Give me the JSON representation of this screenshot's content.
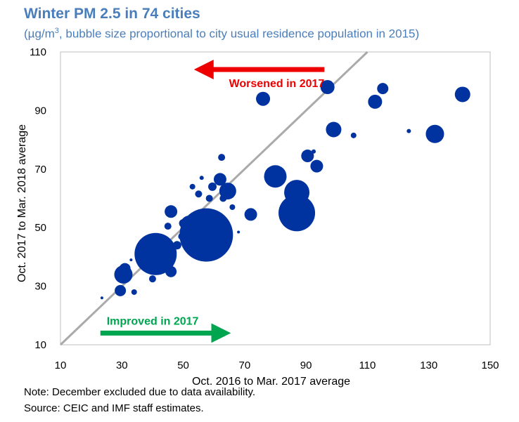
{
  "title": "Winter PM 2.5 in 74 cities",
  "subtitle_pre": "(µg/m",
  "subtitle_sup": "3",
  "subtitle_post": ", bubble size proportional to city usual residence population in 2015)",
  "notes": [
    "Note: December excluded due to data availability.",
    "Source: CEIC and IMF staff estimates."
  ],
  "colors": {
    "bubble": "#0033a0",
    "diagonal": "#aaaaaa",
    "worsened": "#ee0000",
    "improved": "#00a550"
  },
  "chart_data": {
    "type": "scatter",
    "xlabel": "Oct. 2016 to Mar. 2017 average",
    "ylabel": "Oct. 2017 to Mar. 2018 average",
    "xlim": [
      10,
      150
    ],
    "ylim": [
      10,
      110
    ],
    "xticks": [
      10,
      30,
      50,
      70,
      90,
      110,
      130,
      150
    ],
    "yticks": [
      10,
      30,
      50,
      70,
      90,
      110
    ],
    "reference_line": "y = x",
    "annotations": [
      {
        "text": "Worsened in 2017",
        "arrow": "left",
        "color": "#ee0000",
        "x_from": 96,
        "x_to": 56,
        "y": 104
      },
      {
        "text": "Improved in 2017",
        "arrow": "right",
        "color": "#00a550",
        "x_from": 23,
        "x_to": 63,
        "y": 14
      }
    ],
    "points": [
      {
        "x": 23.5,
        "y": 26,
        "r": 2
      },
      {
        "x": 29.5,
        "y": 28.5,
        "r": 8
      },
      {
        "x": 30.5,
        "y": 34,
        "r": 13
      },
      {
        "x": 31,
        "y": 36,
        "r": 8
      },
      {
        "x": 33,
        "y": 39,
        "r": 2
      },
      {
        "x": 34,
        "y": 28,
        "r": 4
      },
      {
        "x": 40,
        "y": 32.5,
        "r": 5
      },
      {
        "x": 41,
        "y": 41,
        "r": 30
      },
      {
        "x": 43,
        "y": 44,
        "r": 12
      },
      {
        "x": 45,
        "y": 50.5,
        "r": 5
      },
      {
        "x": 46,
        "y": 35,
        "r": 8
      },
      {
        "x": 46,
        "y": 55.5,
        "r": 9
      },
      {
        "x": 48,
        "y": 44,
        "r": 6
      },
      {
        "x": 49.5,
        "y": 47,
        "r": 5
      },
      {
        "x": 50,
        "y": 51.5,
        "r": 6
      },
      {
        "x": 52,
        "y": 51,
        "r": 13
      },
      {
        "x": 53,
        "y": 64,
        "r": 4
      },
      {
        "x": 55,
        "y": 61.5,
        "r": 5
      },
      {
        "x": 56,
        "y": 67,
        "r": 3
      },
      {
        "x": 57.5,
        "y": 47.5,
        "r": 38
      },
      {
        "x": 58.5,
        "y": 60,
        "r": 5
      },
      {
        "x": 59.5,
        "y": 64,
        "r": 6
      },
      {
        "x": 62,
        "y": 66.5,
        "r": 9
      },
      {
        "x": 62.5,
        "y": 74,
        "r": 5
      },
      {
        "x": 63,
        "y": 60,
        "r": 5
      },
      {
        "x": 64.5,
        "y": 62.5,
        "r": 12
      },
      {
        "x": 66,
        "y": 57,
        "r": 4
      },
      {
        "x": 68,
        "y": 48.5,
        "r": 2
      },
      {
        "x": 72,
        "y": 54.5,
        "r": 9
      },
      {
        "x": 76,
        "y": 94,
        "r": 10
      },
      {
        "x": 80,
        "y": 67.5,
        "r": 16
      },
      {
        "x": 87,
        "y": 62,
        "r": 18
      },
      {
        "x": 87,
        "y": 55,
        "r": 26
      },
      {
        "x": 90.5,
        "y": 74.5,
        "r": 9
      },
      {
        "x": 92.5,
        "y": 76,
        "r": 3
      },
      {
        "x": 93.5,
        "y": 71,
        "r": 9
      },
      {
        "x": 97,
        "y": 98,
        "r": 10
      },
      {
        "x": 99,
        "y": 83.5,
        "r": 11
      },
      {
        "x": 105.5,
        "y": 81.5,
        "r": 4
      },
      {
        "x": 112.5,
        "y": 93,
        "r": 10
      },
      {
        "x": 115,
        "y": 97.5,
        "r": 8
      },
      {
        "x": 123.5,
        "y": 83,
        "r": 3
      },
      {
        "x": 132,
        "y": 82,
        "r": 13
      },
      {
        "x": 141,
        "y": 95.5,
        "r": 11
      }
    ]
  }
}
